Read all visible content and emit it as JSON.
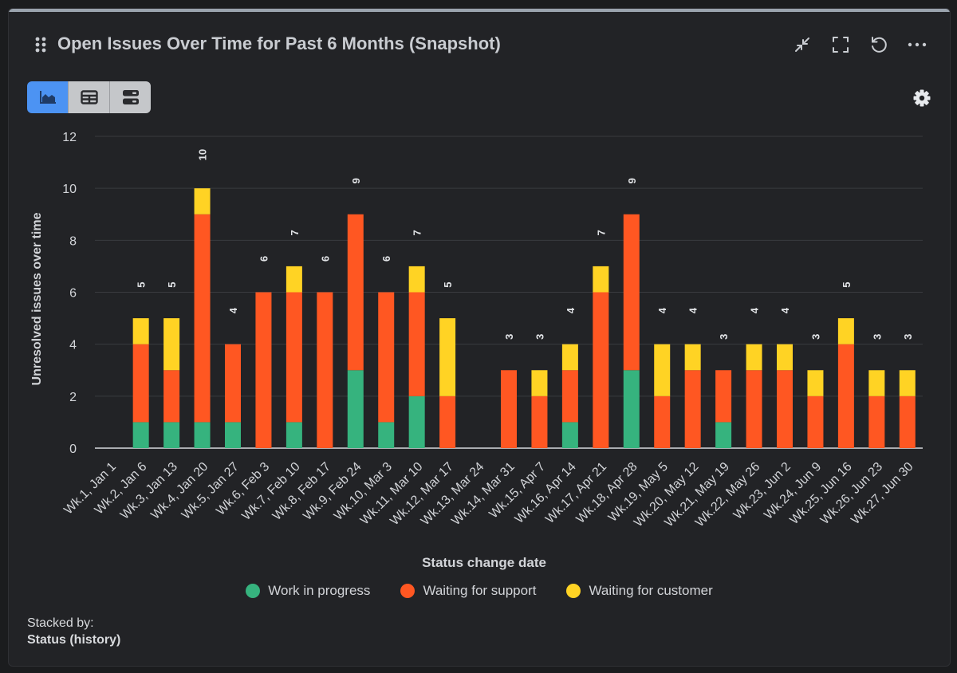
{
  "header": {
    "title": "Open Issues Over Time for Past 6 Months (Snapshot)",
    "icons": [
      "drag-handle-icon",
      "minimize-icon",
      "fullscreen-icon",
      "refresh-icon",
      "more-icon"
    ]
  },
  "toolbar": {
    "views": [
      "chart-view-icon",
      "table-view-icon",
      "list-view-icon"
    ],
    "active_view": "chart",
    "settings_icon": "gear-icon"
  },
  "footer": {
    "stacked_by_label": "Stacked by:",
    "stacked_by_value": "Status (history)"
  },
  "colors": {
    "work_in_progress": "#36b37e",
    "waiting_for_support": "#ff5722",
    "waiting_for_customer": "#ffd324",
    "accent": "#4c93f3"
  },
  "chart_data": {
    "type": "bar",
    "stacked": true,
    "xlabel": "Status change date",
    "ylabel": "Unresolved issues over time",
    "ylim": [
      0,
      12
    ],
    "yticks": [
      0,
      2,
      4,
      6,
      8,
      10,
      12
    ],
    "grid": true,
    "legend_position": "bottom",
    "categories": [
      "Wk.1, Jan 1",
      "Wk.2, Jan 6",
      "Wk.3, Jan 13",
      "Wk.4, Jan 20",
      "Wk.5, Jan 27",
      "Wk.6, Feb 3",
      "Wk.7, Feb 10",
      "Wk.8, Feb 17",
      "Wk.9, Feb 24",
      "Wk.10, Mar 3",
      "Wk.11, Mar 10",
      "Wk.12, Mar 17",
      "Wk.13, Mar 24",
      "Wk.14, Mar 31",
      "Wk.15, Apr 7",
      "Wk.16, Apr 14",
      "Wk.17, Apr 21",
      "Wk.18, Apr 28",
      "Wk.19, May 5",
      "Wk.20, May 12",
      "Wk.21, May 19",
      "Wk.22, May 26",
      "Wk.23, Jun 2",
      "Wk.24, Jun 9",
      "Wk.25, Jun 16",
      "Wk.26, Jun 23",
      "Wk.27, Jun 30"
    ],
    "series": [
      {
        "name": "Work in progress",
        "color": "#36b37e",
        "values": [
          0,
          1,
          1,
          1,
          1,
          0,
          1,
          0,
          3,
          1,
          2,
          0,
          0,
          0,
          0,
          1,
          0,
          3,
          0,
          0,
          1,
          0,
          0,
          0,
          0,
          0,
          0
        ]
      },
      {
        "name": "Waiting for support",
        "color": "#ff5722",
        "values": [
          0,
          3,
          2,
          8,
          3,
          6,
          5,
          6,
          6,
          5,
          4,
          2,
          0,
          3,
          2,
          2,
          6,
          6,
          2,
          3,
          2,
          3,
          3,
          2,
          4,
          2,
          2
        ]
      },
      {
        "name": "Waiting for customer",
        "color": "#ffd324",
        "values": [
          0,
          1,
          2,
          1,
          0,
          0,
          1,
          0,
          0,
          0,
          1,
          3,
          0,
          0,
          1,
          1,
          1,
          0,
          2,
          1,
          0,
          1,
          1,
          1,
          1,
          1,
          1
        ]
      }
    ],
    "totals": [
      null,
      "5",
      "5",
      "10",
      "4",
      "6",
      "7",
      "6",
      "9",
      "6",
      "7",
      "5",
      null,
      "3",
      "3",
      "4",
      "7",
      "9",
      "4",
      "4",
      "3",
      "4",
      "4",
      "3",
      "5",
      "3",
      "3"
    ]
  }
}
